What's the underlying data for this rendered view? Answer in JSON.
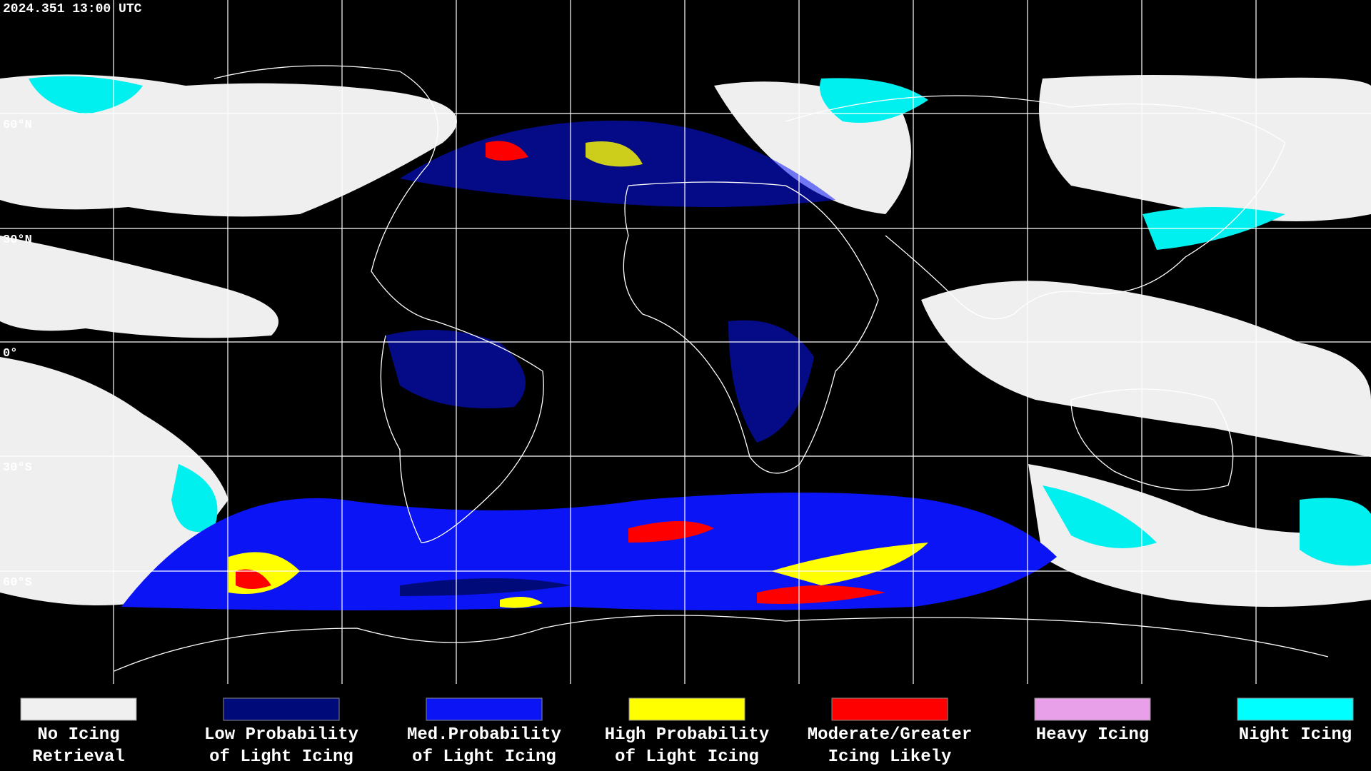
{
  "header": {
    "timestamp": "2024.351 13:00 UTC"
  },
  "map": {
    "lat_labels": [
      "60°N",
      "30°N",
      "0°",
      "30°S",
      "60°S"
    ]
  },
  "legend": {
    "items": [
      {
        "lines": [
          "No Icing",
          "Retrieval"
        ],
        "color": "#f0f0f0"
      },
      {
        "lines": [
          "Low Probability",
          "of Light Icing"
        ],
        "color": "#000a78"
      },
      {
        "lines": [
          "Med.Probability",
          "of Light Icing"
        ],
        "color": "#0a14f5"
      },
      {
        "lines": [
          "High Probability",
          "of Light Icing"
        ],
        "color": "#ffff00"
      },
      {
        "lines": [
          "Moderate/Greater",
          "Icing Likely"
        ],
        "color": "#ff0000"
      },
      {
        "lines": [
          "Heavy Icing"
        ],
        "color": "#e8a0e8"
      },
      {
        "lines": [
          "Night Icing"
        ],
        "color": "#00ffff"
      }
    ]
  }
}
